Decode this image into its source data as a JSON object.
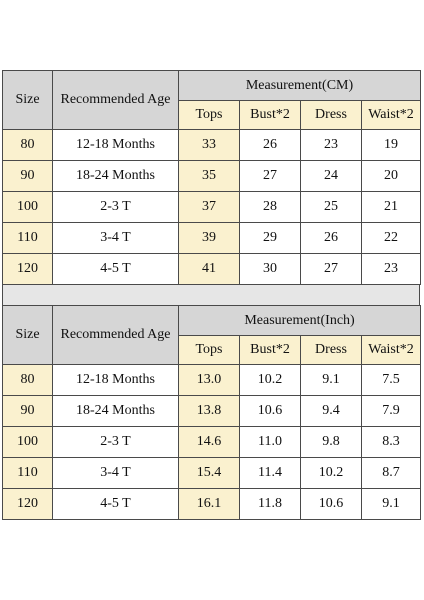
{
  "tables": [
    {
      "size_label": "Size",
      "age_label": "Recommended Age",
      "group_label": "Measurement(CM)",
      "columns": [
        "Tops",
        "Bust*2",
        "Dress",
        "Waist*2"
      ],
      "rows": [
        {
          "size": "80",
          "age": "12-18 Months",
          "values": [
            "33",
            "26",
            "23",
            "19"
          ]
        },
        {
          "size": "90",
          "age": "18-24 Months",
          "values": [
            "35",
            "27",
            "24",
            "20"
          ]
        },
        {
          "size": "100",
          "age": "2-3 T",
          "values": [
            "37",
            "28",
            "25",
            "21"
          ]
        },
        {
          "size": "110",
          "age": "3-4 T",
          "values": [
            "39",
            "29",
            "26",
            "22"
          ]
        },
        {
          "size": "120",
          "age": "4-5 T",
          "values": [
            "41",
            "30",
            "27",
            "23"
          ]
        }
      ]
    },
    {
      "size_label": "Size",
      "age_label": "Recommended Age",
      "group_label": "Measurement(Inch)",
      "columns": [
        "Tops",
        "Bust*2",
        "Dress",
        "Waist*2"
      ],
      "rows": [
        {
          "size": "80",
          "age": "12-18 Months",
          "values": [
            "13.0",
            "10.2",
            "9.1",
            "7.5"
          ]
        },
        {
          "size": "90",
          "age": "18-24 Months",
          "values": [
            "13.8",
            "10.6",
            "9.4",
            "7.9"
          ]
        },
        {
          "size": "100",
          "age": "2-3 T",
          "values": [
            "14.6",
            "11.0",
            "9.8",
            "8.3"
          ]
        },
        {
          "size": "110",
          "age": "3-4 T",
          "values": [
            "15.4",
            "11.4",
            "10.2",
            "8.7"
          ]
        },
        {
          "size": "120",
          "age": "4-5 T",
          "values": [
            "16.1",
            "11.8",
            "10.6",
            "9.1"
          ]
        }
      ]
    }
  ]
}
